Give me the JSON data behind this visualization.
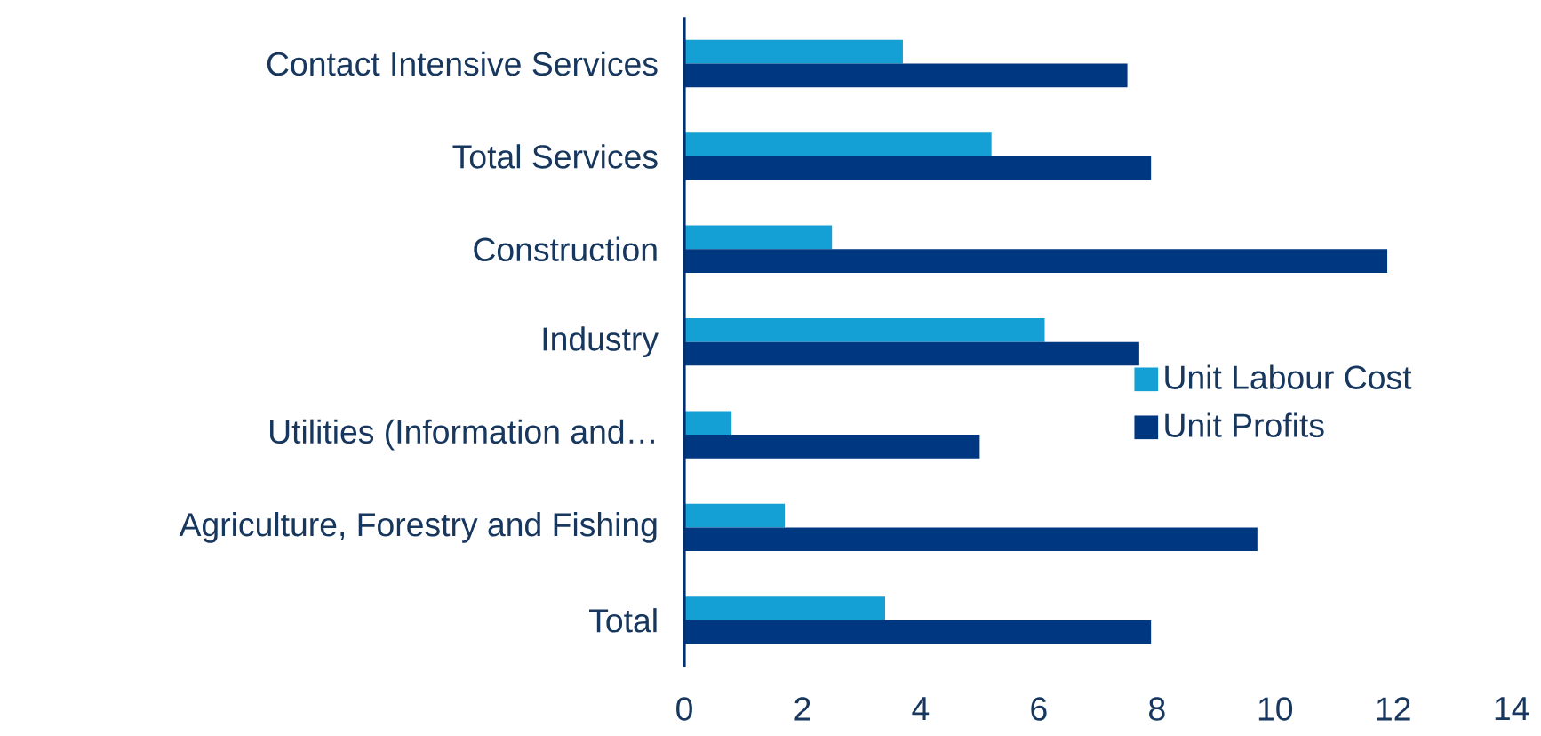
{
  "chart_data": {
    "type": "bar",
    "orientation": "horizontal",
    "categories": [
      "Contact Intensive Services",
      "Total Services",
      "Construction",
      "Industry",
      "Utilities (Information and…",
      "Agriculture, Forestry and Fishing",
      "Total"
    ],
    "series": [
      {
        "name": "Unit Labour Cost",
        "color": "#14a0d4",
        "values": [
          3.7,
          5.2,
          2.5,
          6.1,
          0.8,
          1.7,
          3.4
        ]
      },
      {
        "name": "Unit Profits",
        "color": "#003781",
        "values": [
          7.5,
          7.9,
          11.9,
          7.7,
          5.0,
          9.7,
          7.9
        ]
      }
    ],
    "xlim": [
      0,
      14
    ],
    "xticks": [
      0,
      2,
      4,
      6,
      8,
      10,
      12,
      14
    ],
    "legend": "right"
  }
}
